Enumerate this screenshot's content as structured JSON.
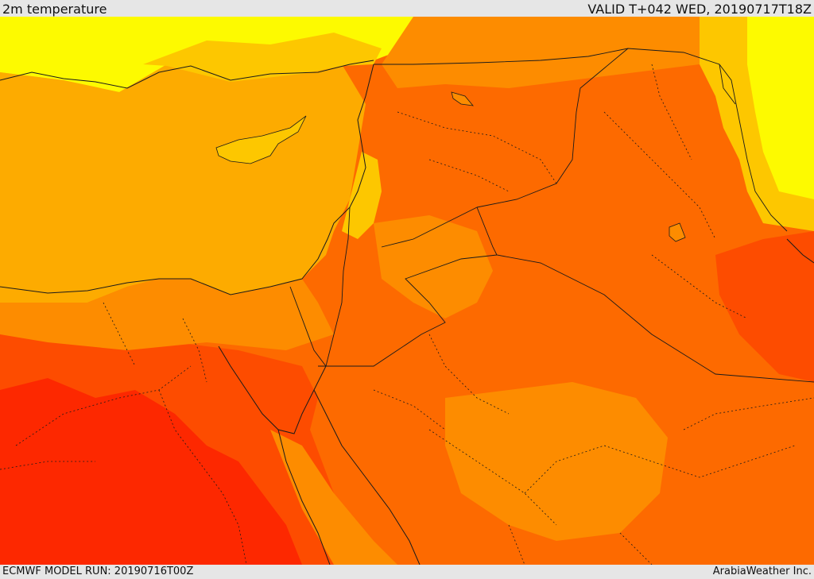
{
  "header": {
    "title": "2m temperature",
    "valid": "VALID T+042 WED, 20190717T18Z"
  },
  "footer": {
    "model_run": "ECMWF MODEL RUN: 20190716T00Z",
    "credit": "ArabiaWeather Inc."
  },
  "colors": {
    "sea_orange": "#fdab00",
    "yellow": "#fdfa00",
    "light_orange": "#fdc700",
    "orange": "#fd8c00",
    "dark_orange": "#fd6a00",
    "red_orange": "#fd4c00",
    "red": "#fd2800",
    "border": "#1a1a1a"
  }
}
